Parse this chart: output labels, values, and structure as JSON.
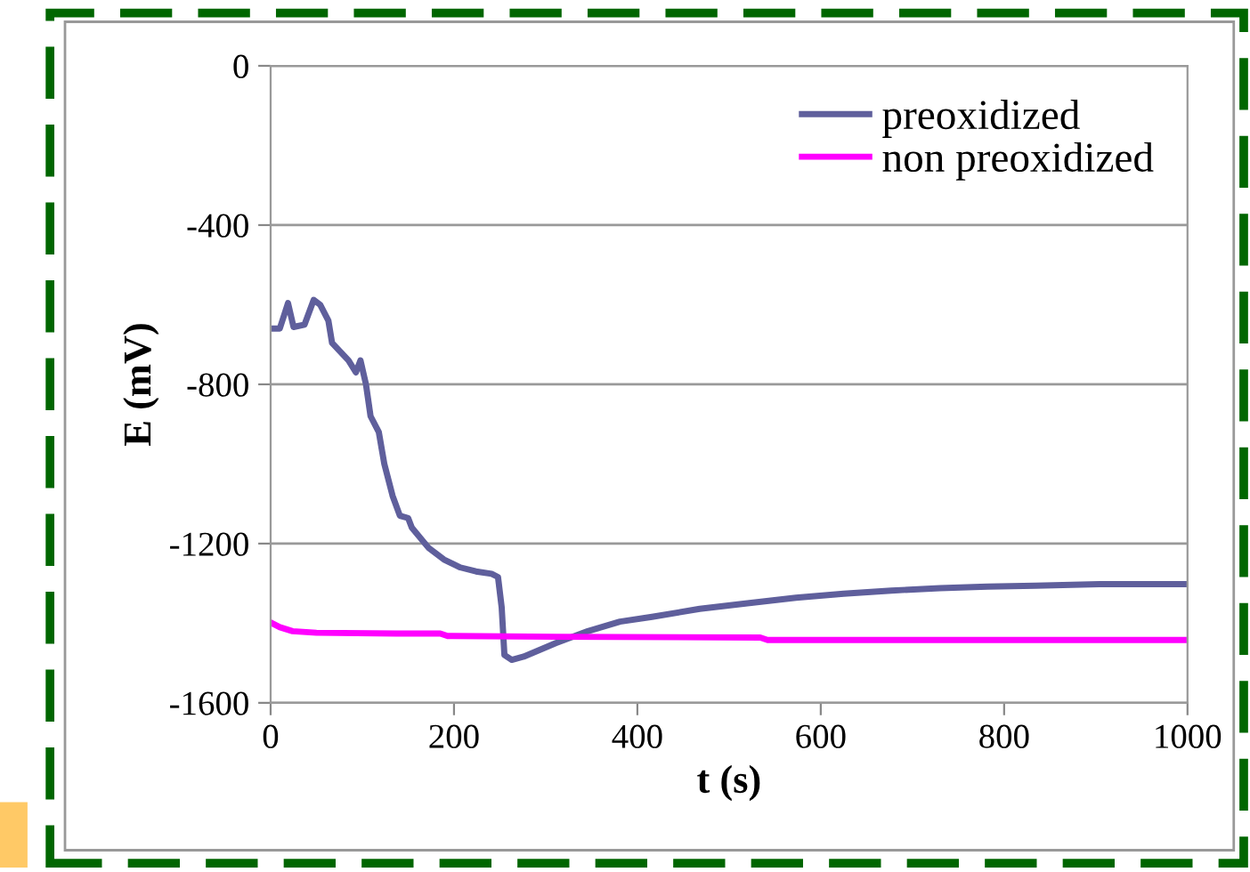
{
  "chart_data": {
    "type": "line",
    "xlabel": "t (s)",
    "ylabel": "E (mV)",
    "xlim": [
      0,
      1000
    ],
    "xticks": [
      0,
      200,
      400,
      600,
      800,
      1000
    ],
    "ylim": [
      -1600,
      0
    ],
    "yticks": [
      -1600,
      -1200,
      -800,
      -400,
      0
    ],
    "grid": "y",
    "legend": "top right",
    "line_style": "solid",
    "marker": "none",
    "series": [
      {
        "name": "preoxidized",
        "color": "#5f5f9c",
        "x": [
          0,
          10,
          19,
          25,
          37,
          47,
          54,
          63,
          67,
          85,
          93,
          98,
          104,
          109,
          118,
          124,
          133,
          141,
          150,
          154,
          172,
          189,
          207,
          224,
          241,
          248,
          252,
          255,
          263,
          276,
          311,
          346,
          381,
          416,
          468,
          520,
          573,
          625,
          677,
          730,
          782,
          834,
          904,
          1000
        ],
        "values": [
          -660,
          -660,
          -596,
          -656,
          -650,
          -588,
          -600,
          -640,
          -696,
          -740,
          -770,
          -740,
          -800,
          -880,
          -920,
          -1000,
          -1080,
          -1130,
          -1136,
          -1160,
          -1210,
          -1240,
          -1260,
          -1270,
          -1276,
          -1284,
          -1360,
          -1480,
          -1492,
          -1484,
          -1450,
          -1420,
          -1396,
          -1384,
          -1364,
          -1350,
          -1336,
          -1326,
          -1318,
          -1312,
          -1308,
          -1306,
          -1302,
          -1302
        ]
      },
      {
        "name": "non preoxidized",
        "color": "#ff00ff",
        "x": [
          0,
          10,
          24,
          50,
          137,
          185,
          193,
          311,
          534,
          542,
          1000
        ],
        "values": [
          -1398,
          -1410,
          -1420,
          -1424,
          -1426,
          -1426,
          -1432,
          -1434,
          -1436,
          -1442,
          -1442
        ]
      }
    ]
  }
}
